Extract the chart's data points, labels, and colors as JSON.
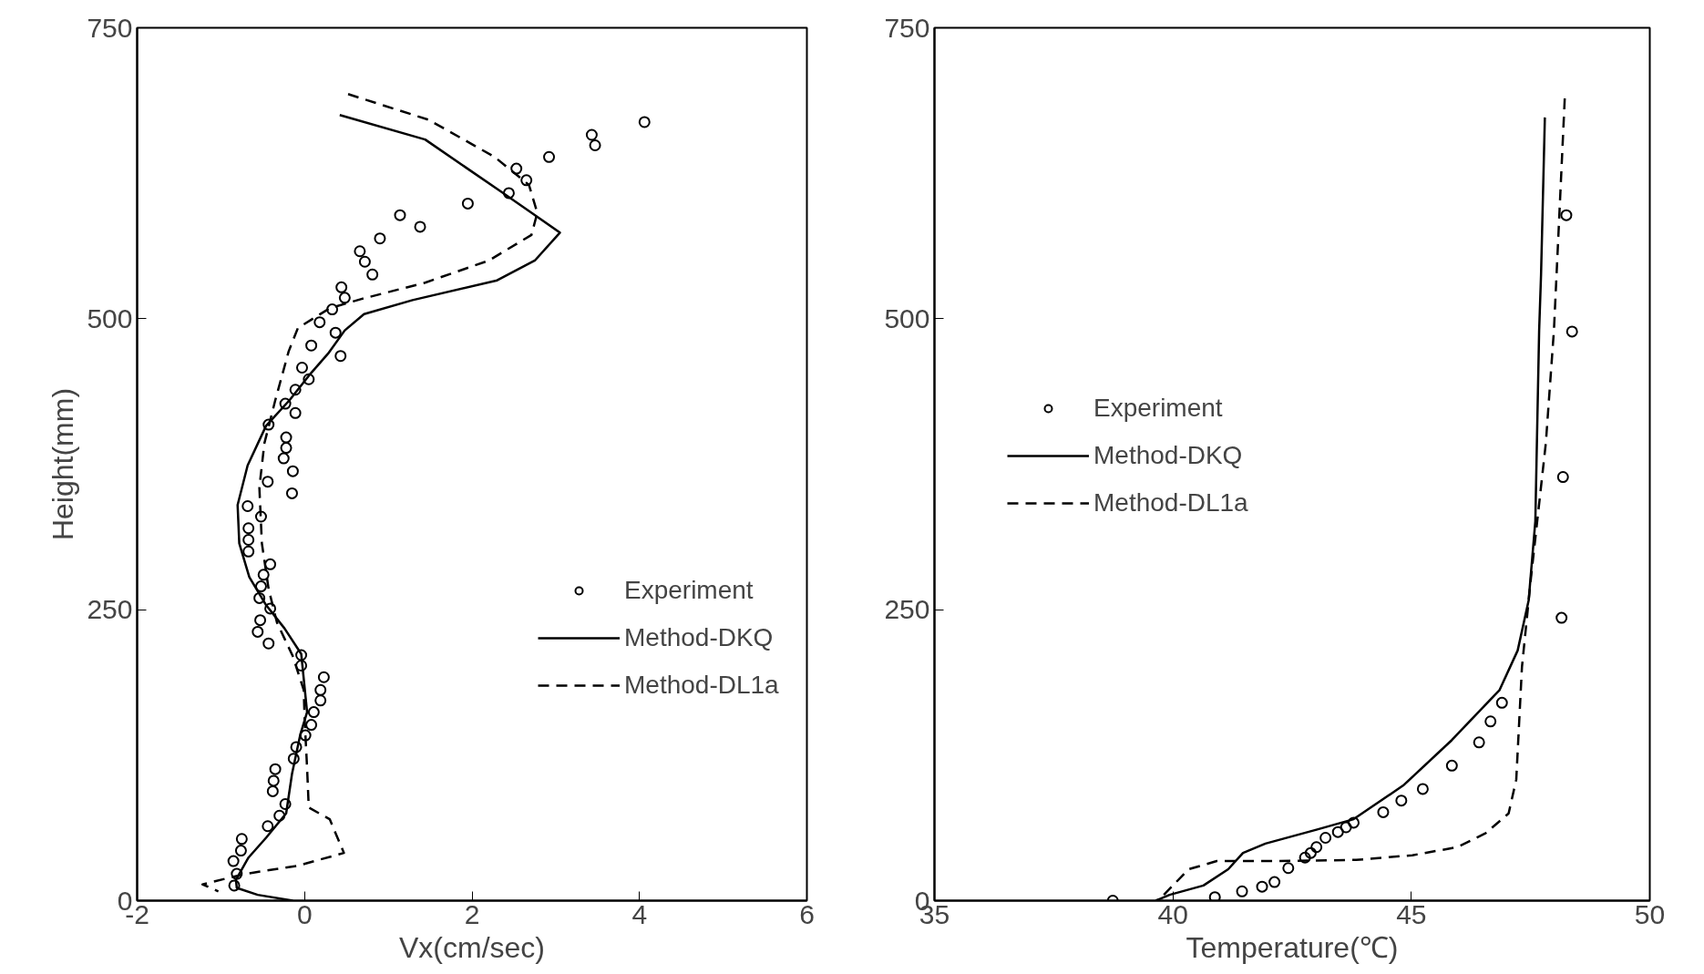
{
  "chart_data": [
    {
      "type": "line",
      "xlabel": "Vx(cm/sec)",
      "ylabel": "Height(mm)",
      "xlim": [
        -2,
        6
      ],
      "xticks": [
        -2,
        0,
        2,
        4,
        6
      ],
      "ylim": [
        0,
        750
      ],
      "yticks": [
        0,
        250,
        500,
        750
      ],
      "grid": false,
      "legend": "right",
      "series": [
        {
          "name": "Experiment",
          "type": "scatter",
          "marker": "circle",
          "color": "#000000",
          "x": [
            4.06,
            3.43,
            3.47,
            2.92,
            2.53,
            2.65,
            2.44,
            1.95,
            1.14,
            1.38,
            0.9,
            0.66,
            0.72,
            0.81,
            0.44,
            0.48,
            0.33,
            0.18,
            0.37,
            0.43,
            0.08,
            -0.03,
            0.05,
            -0.11,
            -0.23,
            -0.11,
            -0.43,
            -0.22,
            -0.22,
            -0.25,
            -0.14,
            -0.15,
            -0.44,
            -0.52,
            -0.68,
            -0.67,
            -0.67,
            -0.67,
            -0.41,
            -0.49,
            -0.52,
            -0.54,
            -0.41,
            -0.53,
            -0.56,
            -0.43,
            -0.04,
            -0.04,
            0.23,
            0.19,
            0.19,
            0.11,
            0.08,
            0.01,
            -0.1,
            -0.13,
            -0.35,
            -0.37,
            -0.38,
            -0.23,
            -0.3,
            -0.44,
            -0.75,
            -0.76,
            -0.85,
            -0.81,
            -0.84
          ],
          "values": [
            669,
            658,
            649,
            639,
            629,
            619,
            608,
            599,
            589,
            579,
            569,
            558,
            549,
            538,
            527,
            518,
            508,
            497,
            488,
            468,
            477,
            458,
            448,
            439,
            427,
            419,
            409,
            398,
            389,
            380,
            369,
            350,
            360,
            330,
            339,
            320,
            310,
            300,
            289,
            280,
            270,
            260,
            251,
            241,
            231,
            221,
            211,
            202,
            192,
            181,
            172,
            162,
            151,
            142,
            132,
            122,
            113,
            103,
            94,
            83,
            73,
            64,
            53,
            43,
            34,
            23,
            13
          ]
        },
        {
          "name": "Method-DKQ",
          "line_style": "solid",
          "color": "#000000",
          "x": [
            0.42,
            1.44,
            2.33,
            2.71,
            3.05,
            2.75,
            2.3,
            1.29,
            0.71,
            0.48,
            0.28,
            0.05,
            -0.18,
            -0.46,
            -0.68,
            -0.8,
            -0.78,
            -0.66,
            -0.46,
            -0.24,
            -0.04,
            0.03,
            -0.05,
            -0.15,
            -0.22,
            -0.46,
            -0.67,
            -0.82,
            -0.81,
            -0.56,
            -0.14
          ],
          "values": [
            675,
            654,
            610,
            591,
            574,
            550,
            533,
            516,
            504,
            490,
            470,
            451,
            430,
            408,
            374,
            340,
            307,
            278,
            254,
            234,
            212,
            162,
            143,
            109,
            75,
            54,
            37,
            18,
            11,
            5,
            0
          ]
        },
        {
          "name": "Method-DL1a",
          "line_style": "dashed",
          "color": "#000000",
          "x": [
            0.52,
            1.48,
            2.27,
            2.68,
            2.78,
            2.71,
            2.2,
            1.44,
            0.68,
            0.3,
            -0.08,
            -0.19,
            -0.35,
            -0.48,
            -0.54,
            -0.51,
            -0.43,
            -0.33,
            -0.14,
            -0.01,
            0.0,
            0.03,
            0.05,
            0.3,
            0.47,
            -0.08,
            -0.71,
            -1.22,
            -1.03
          ],
          "values": [
            693,
            671,
            639,
            615,
            591,
            572,
            550,
            531,
            517,
            509,
            492,
            472,
            430,
            393,
            355,
            307,
            268,
            239,
            210,
            181,
            157,
            114,
            80,
            70,
            41,
            30,
            23,
            14,
            8
          ]
        }
      ]
    },
    {
      "type": "line",
      "xlabel": "Temperature(℃)",
      "xlim": [
        35,
        50
      ],
      "xticks": [
        35,
        40,
        45,
        50
      ],
      "ylim": [
        0,
        750
      ],
      "yticks": [
        0,
        250,
        500,
        750
      ],
      "grid": false,
      "legend": "top left",
      "series": [
        {
          "name": "Experiment",
          "type": "scatter",
          "marker": "circle",
          "color": "#000000",
          "x": [
            38.74,
            40.88,
            41.45,
            41.87,
            42.13,
            42.42,
            42.77,
            42.89,
            43.01,
            43.2,
            43.46,
            43.63,
            43.79,
            44.41,
            44.79,
            45.24,
            45.85,
            46.42,
            46.66,
            46.9,
            48.25,
            48.37,
            48.18,
            48.15
          ],
          "values": [
            0,
            3,
            8,
            12,
            16,
            28,
            37,
            41,
            46,
            54,
            59,
            63,
            67,
            76,
            86,
            96,
            116,
            136,
            154,
            170,
            589,
            489,
            364,
            243
          ]
        },
        {
          "name": "Method-DKQ",
          "line_style": "solid",
          "color": "#000000",
          "x": [
            39.64,
            39.93,
            40.64,
            41.16,
            41.47,
            41.94,
            43.01,
            43.79,
            44.83,
            45.85,
            46.85,
            47.23,
            47.46,
            47.6,
            47.68,
            47.72,
            47.8
          ],
          "values": [
            0,
            5,
            13,
            27,
            41,
            49,
            61,
            70,
            99,
            138,
            181,
            215,
            258,
            326,
            490,
            538,
            673
          ]
        },
        {
          "name": "Method-DL1a",
          "line_style": "dashed",
          "color": "#000000",
          "x": [
            39.81,
            40.33,
            40.92,
            42.1,
            43.84,
            45.02,
            45.97,
            46.56,
            47.04,
            47.2,
            47.32,
            47.51,
            47.82,
            47.99,
            48.1,
            48.22
          ],
          "values": [
            5,
            27,
            34,
            34,
            35,
            39,
            46,
            58,
            75,
            104,
            201,
            278,
            393,
            490,
            586,
            692
          ]
        }
      ]
    }
  ]
}
